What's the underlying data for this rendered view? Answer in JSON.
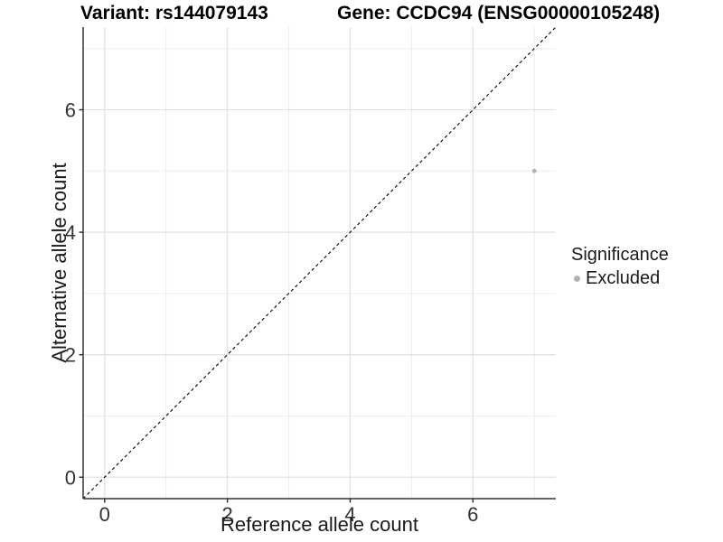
{
  "header": {
    "variant_title": "Variant: rs144079143",
    "gene_title": "Gene: CCDC94 (ENSG00000105248)"
  },
  "chart_data": {
    "type": "scatter",
    "xlabel": "Reference allele count",
    "ylabel": "Alternative allele count",
    "xlim": [
      -0.35,
      7.35
    ],
    "ylim": [
      -0.35,
      7.35
    ],
    "x_ticks": [
      0,
      2,
      4,
      6
    ],
    "y_ticks": [
      0,
      2,
      4,
      6
    ],
    "x_minor_ticks": [
      1,
      3,
      5,
      7
    ],
    "y_minor_ticks": [
      1,
      3,
      5,
      7
    ],
    "grid": true,
    "points": [
      {
        "x": 7,
        "y": 5,
        "series": "Excluded"
      }
    ],
    "reference_line": {
      "slope": 1,
      "intercept": 0,
      "style": "dashed"
    },
    "legend": {
      "position": "right",
      "title": "Significance",
      "items": [
        {
          "label": "Excluded",
          "color": "#b3b3b3"
        }
      ]
    }
  },
  "colors": {
    "background": "#ffffff",
    "grid_major": "#e2e2e2",
    "grid_minor": "#ededed",
    "axis_line": "#333333",
    "tick_mark": "#333333",
    "tick_label": "#333333",
    "point": "#b3b3b3",
    "reference_line": "#000000"
  }
}
